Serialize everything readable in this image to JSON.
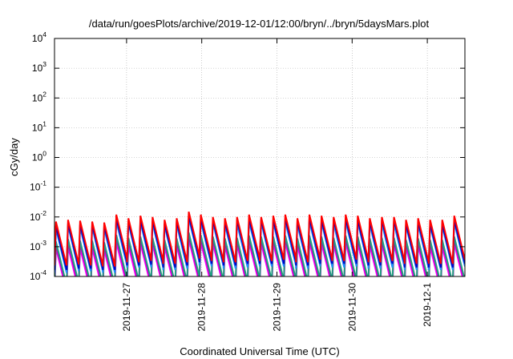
{
  "chart_data": {
    "type": "line",
    "title": "/data/run/goesPlots/archive/2019-12-01/12:00/bryn/../bryn/5daysMars.plot",
    "xlabel": "Coordinated Universal Time (UTC)",
    "ylabel": "cGy/day",
    "yscale": "log",
    "ylim": [
      0.0001,
      10000
    ],
    "xlim": [
      "2019-11-26 01:00",
      "2019-12-01 12:00"
    ],
    "grid": true,
    "y_ticks": [
      {
        "base": "10",
        "exp": "4"
      },
      {
        "base": "10",
        "exp": "3"
      },
      {
        "base": "10",
        "exp": "2"
      },
      {
        "base": "10",
        "exp": "1"
      },
      {
        "base": "10",
        "exp": "0"
      },
      {
        "base": "10",
        "exp": "-1"
      },
      {
        "base": "10",
        "exp": "-2"
      },
      {
        "base": "10",
        "exp": "-3"
      },
      {
        "base": "10",
        "exp": "-4"
      }
    ],
    "x_ticks": [
      "2019-11-27",
      "2019-11-28",
      "2019-11-29",
      "2019-11-30",
      "2019-12-1"
    ],
    "series_colors": [
      "#ff0000",
      "#0000c8",
      "#1e90ff",
      "#20a080",
      "#b000b0",
      "#ff00ff"
    ],
    "series": [
      {
        "peak_levels": [
          0.007,
          0.008,
          0.0075,
          0.007,
          0.0065,
          0.012,
          0.009,
          0.011,
          0.01,
          0.008,
          0.009,
          0.015,
          0.012,
          0.01,
          0.009,
          0.01,
          0.012,
          0.01,
          0.011,
          0.012,
          0.009,
          0.012,
          0.011,
          0.01,
          0.012,
          0.011,
          0.009,
          0.01,
          0.01,
          0.008,
          0.009,
          0.008,
          0.008,
          0.011
        ]
      },
      {
        "peak_levels": [
          0.005,
          0.006,
          0.0055,
          0.0055,
          0.005,
          0.009,
          0.007,
          0.008,
          0.0075,
          0.006,
          0.007,
          0.011,
          0.009,
          0.008,
          0.007,
          0.008,
          0.009,
          0.008,
          0.008,
          0.009,
          0.007,
          0.009,
          0.008,
          0.008,
          0.009,
          0.008,
          0.007,
          0.008,
          0.008,
          0.006,
          0.007,
          0.006,
          0.006,
          0.008
        ]
      },
      {
        "peak_levels": [
          0.004,
          0.005,
          0.0045,
          0.0045,
          0.004,
          0.007,
          0.006,
          0.0065,
          0.006,
          0.005,
          0.0055,
          0.009,
          0.007,
          0.0065,
          0.0055,
          0.006,
          0.007,
          0.0065,
          0.0065,
          0.007,
          0.0055,
          0.007,
          0.0065,
          0.006,
          0.007,
          0.0065,
          0.0055,
          0.006,
          0.006,
          0.005,
          0.0055,
          0.005,
          0.005,
          0.0065
        ]
      },
      {
        "peak_levels": [
          0.0015,
          0.0018,
          0.0016,
          0.0016,
          0.0014,
          0.0025,
          0.002,
          0.0022,
          0.002,
          0.0017,
          0.0019,
          0.003,
          0.0025,
          0.0022,
          0.0019,
          0.002,
          0.0024,
          0.0022,
          0.0022,
          0.0024,
          0.0019,
          0.0024,
          0.0022,
          0.002,
          0.0024,
          0.0022,
          0.0019,
          0.002,
          0.002,
          0.0017,
          0.0019,
          0.0017,
          0.0017,
          0.0022
        ]
      },
      {
        "peak_levels": [
          0.0012,
          0.0014,
          0.0013,
          0.0013,
          0.0011,
          0.002,
          0.0016,
          0.0018,
          0.0016,
          0.0014,
          0.0015,
          0.0024,
          0.002,
          0.0018,
          0.0015,
          0.0016,
          0.0019,
          0.0018,
          0.0018,
          0.0019,
          0.0015,
          0.0019,
          0.0018,
          0.0016,
          0.0019,
          0.0018,
          0.0015,
          0.0016,
          0.0016,
          0.0014,
          0.0015,
          0.0014,
          0.0014,
          0.0018
        ]
      },
      {
        "peak_levels": [
          0.0009,
          0.001,
          0.0009,
          0.0009,
          0.0008,
          0.0014,
          0.0011,
          0.0013,
          0.0012,
          0.001,
          0.0011,
          0.0018,
          0.0014,
          0.0013,
          0.0011,
          0.0012,
          0.0014,
          0.0013,
          0.0013,
          0.0014,
          0.0011,
          0.0014,
          0.0013,
          0.0012,
          0.0014,
          0.0013,
          0.0011,
          0.0012,
          0.0012,
          0.001,
          0.0011,
          0.001,
          0.001,
          0.0013
        ]
      }
    ]
  }
}
